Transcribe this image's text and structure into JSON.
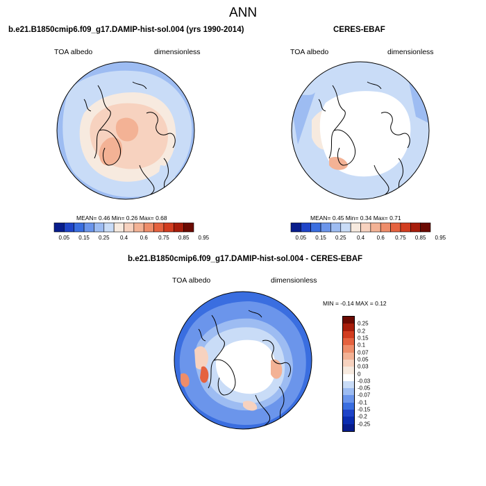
{
  "figure_title": "ANN",
  "panels": [
    {
      "title": "b.e21.B1850cmip6.f09_g17.DAMIP-hist-sol.004 (yrs 1990-2014)",
      "left_label": "TOA albedo",
      "right_label": "dimensionless",
      "stats": "MEAN=  0.46  Min=  0.26  Max=  0.68"
    },
    {
      "title": "CERES-EBAF",
      "left_label": "TOA albedo",
      "right_label": "dimensionless",
      "stats": "MEAN=  0.45  Min=  0.34  Max=  0.71"
    },
    {
      "title": "b.e21.B1850cmip6.f09_g17.DAMIP-hist-sol.004 - CERES-EBAF",
      "left_label": "TOA albedo",
      "right_label": "dimensionless",
      "stats": "MIN =  -0.14 MAX =   0.12"
    }
  ],
  "abs_colorbar": {
    "colors": [
      "#081d8c",
      "#1f44c8",
      "#3a6ee0",
      "#6b95eb",
      "#9dbcf2",
      "#c9dcf7",
      "#f7eadf",
      "#f7d2bf",
      "#f3b295",
      "#ee8d6a",
      "#e5623f",
      "#d23d20",
      "#a71d0b",
      "#6b0a02"
    ],
    "tick_labels": [
      "0.05",
      "0.15",
      "0.25",
      "0.4",
      "0.6",
      "0.75",
      "0.85",
      "0.95"
    ]
  },
  "diff_colorbar": {
    "colors": [
      "#6b0a02",
      "#a71d0b",
      "#d23d20",
      "#e5623f",
      "#ee8d6a",
      "#f3b295",
      "#f7d2bf",
      "#f7eadf",
      "#ffffff",
      "#c9dcf7",
      "#9dbcf2",
      "#6b95eb",
      "#3a6ee0",
      "#1f44c8",
      "#0b2db0",
      "#081d8c"
    ],
    "tick_labels": [
      "0.25",
      "0.2",
      "0.15",
      "0.1",
      "0.07",
      "0.05",
      "0.03",
      "0",
      "-0.03",
      "-0.05",
      "-0.07",
      "-0.1",
      "-0.15",
      "-0.2",
      "-0.25"
    ]
  },
  "map_colors": {
    "ocean_light": "#c9dcf7",
    "ocean_mid": "#9dbcf2",
    "ocean_blue": "#6b95eb",
    "ocean_deep": "#3a6ee0",
    "ice_peach": "#f7d2bf",
    "ice_pale": "#f7eadf",
    "ice_salmon": "#f3b295",
    "orange": "#ee8d6a",
    "red": "#e5623f",
    "white": "#ffffff",
    "coast": "#000000"
  }
}
